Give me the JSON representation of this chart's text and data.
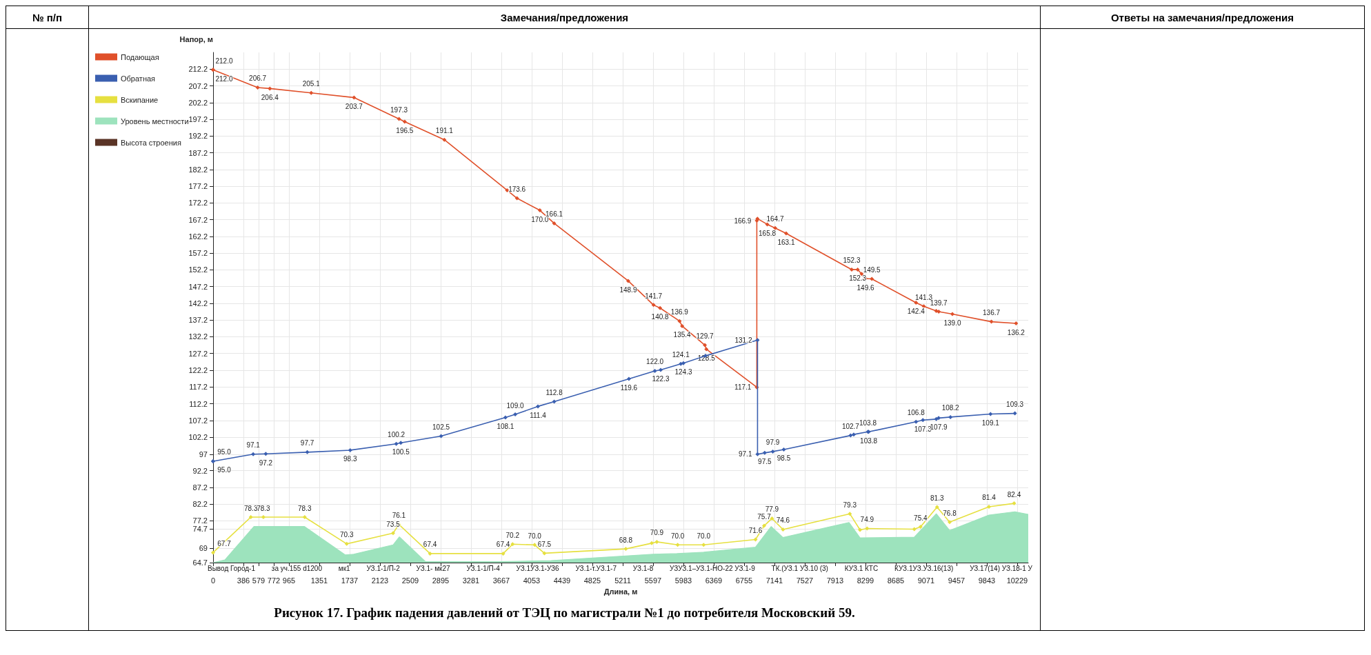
{
  "chart_data": {
    "type": "line",
    "xlabel": "Длина, м",
    "ylabel": "Напор, м",
    "xlim": [
      0,
      10370
    ],
    "xticks": [
      0,
      386,
      579,
      772,
      965,
      1351,
      1737,
      2123,
      2509,
      2895,
      3281,
      3667,
      4053,
      4439,
      4825,
      5211,
      5597,
      5983,
      6369,
      6755,
      7141,
      7527,
      7913,
      8299,
      8685,
      9071,
      9457,
      9843,
      10229
    ],
    "ylim": [
      64.7,
      217.2
    ],
    "yticks": [
      64.7,
      69,
      74.7,
      77.2,
      82.2,
      87.2,
      92.2,
      97,
      102.2,
      107.2,
      112.2,
      117.2,
      122.2,
      127.2,
      132.2,
      137.2,
      142.2,
      147.2,
      152.2,
      157.2,
      162.2,
      167.2,
      172.2,
      177.2,
      182.2,
      187.2,
      192.2,
      197.2,
      202.2,
      207.2,
      212.2
    ],
    "grid": true,
    "legend": "left",
    "marker": "diamond",
    "series": [
      {
        "name": "Подающая",
        "color": "#e0502a",
        "x": [
          0,
          0,
          567,
          722,
          1248,
          1793,
          2365,
          2438,
          2942,
          3740,
          3866,
          4157,
          4339,
          5281,
          5603,
          5686,
          5934,
          5967,
          6256,
          6275,
          6917,
          6917,
          6925,
          7050,
          7150,
          7290,
          8124,
          8200,
          8250,
          8300,
          8380,
          8942,
          9041,
          9200,
          9231,
          9405,
          9901,
          10215
        ],
        "values": [
          212.0,
          212.0,
          206.7,
          206.4,
          205.1,
          203.7,
          197.3,
          196.5,
          191.1,
          176.0,
          173.6,
          170.0,
          166.1,
          148.9,
          141.7,
          140.8,
          136.9,
          135.4,
          129.7,
          128.5,
          117.1,
          166.9,
          167.5,
          165.8,
          164.7,
          163.1,
          152.3,
          152.3,
          151.0,
          149.6,
          149.5,
          142.4,
          141.3,
          139.9,
          139.7,
          139.0,
          136.7,
          136.2
        ],
        "value_labels": [
          "212.0",
          "212.0",
          "206.7",
          "206.4",
          "205.1",
          "203.7",
          "197.3",
          "196.5",
          "191.1",
          null,
          "173.6",
          "170.0",
          "166.1",
          "148.9",
          "141.7",
          "140.8",
          "136.9",
          "135.4",
          "129.7",
          "128.5",
          "117.1",
          "166.9",
          null,
          "165.8",
          "164.7",
          "163.1",
          "152.3",
          "152.3",
          null,
          "149.6",
          "149.5",
          "142.4",
          "141.3",
          null,
          "139.7",
          "139.0",
          "136.7",
          "136.2"
        ]
      },
      {
        "name": "Обратная",
        "color": "#3a5fb0",
        "x": [
          0,
          0,
          510,
          670,
          1198,
          1744,
          2330,
          2388,
          2900,
          3719,
          3843,
          4132,
          4339,
          5290,
          5620,
          5694,
          5950,
          5983,
          6264,
          6926,
          6926,
          7017,
          7120,
          7260,
          8110,
          8150,
          8330,
          8340,
          8942,
          9030,
          9200,
          9230,
          9380,
          9890,
          10200
        ],
        "values": [
          95.0,
          95.0,
          97.1,
          97.2,
          97.7,
          98.3,
          100.2,
          100.5,
          102.5,
          108.1,
          109.0,
          111.4,
          112.8,
          119.6,
          122.0,
          122.3,
          124.1,
          124.3,
          126.5,
          131.2,
          97.1,
          97.5,
          97.9,
          98.5,
          102.7,
          103.0,
          103.8,
          103.8,
          106.8,
          107.3,
          107.6,
          107.9,
          108.2,
          109.1,
          109.3
        ],
        "value_labels": [
          "95.0",
          "95.0",
          "97.1",
          "97.2",
          "97.7",
          "98.3",
          "100.2",
          "100.5",
          "102.5",
          "108.1",
          "109.0",
          "111.4",
          "112.8",
          "119.6",
          "122.0",
          "122.3",
          "124.1",
          "124.3",
          null,
          "131.2",
          "97.1",
          "97.5",
          "97.9",
          "98.5",
          "102.7",
          null,
          "103.8",
          "103.8",
          "106.8",
          "107.3",
          null,
          "107.9",
          "108.2",
          "109.1",
          "109.3"
        ]
      },
      {
        "name": "Вскипание",
        "color": "#e6e040",
        "x": [
          0,
          480,
          640,
          1165,
          1700,
          2290,
          2364,
          2760,
          3690,
          3810,
          4090,
          4215,
          5250,
          5580,
          5645,
          5910,
          6240,
          6900,
          7010,
          7110,
          7250,
          8100,
          8230,
          8320,
          8920,
          9000,
          9210,
          9370,
          9870,
          10190
        ],
        "values": [
          67.7,
          78.3,
          78.3,
          78.3,
          70.3,
          73.5,
          76.1,
          67.4,
          67.4,
          70.2,
          70.0,
          67.5,
          68.8,
          70.5,
          70.9,
          70.0,
          70.0,
          71.6,
          75.7,
          77.9,
          74.6,
          79.3,
          74.5,
          74.9,
          74.7,
          75.4,
          81.3,
          76.8,
          81.4,
          82.4
        ],
        "value_labels": [
          "67.7",
          "78.3",
          "78.3",
          "78.3",
          "70.3",
          "73.5",
          "76.1",
          "67.4",
          "67.4",
          "70.2",
          "70.0",
          "67.5",
          "68.8",
          null,
          "70.9",
          "70.0",
          "70.0",
          "71.6",
          "75.7",
          "77.9",
          "74.6",
          "79.3",
          null,
          "74.9",
          null,
          "75.4",
          "81.3",
          "76.8",
          "81.4",
          "82.4"
        ]
      },
      {
        "name": "Уровень местности",
        "type": "area",
        "marker": "none",
        "color": "#9de3bd",
        "x": [
          0,
          150,
          520,
          1160,
          1680,
          1790,
          2290,
          2370,
          2700,
          3660,
          4300,
          5250,
          5600,
          5900,
          6240,
          6900,
          7100,
          7250,
          8090,
          8230,
          8920,
          9200,
          9370,
          9870,
          10200,
          10370
        ],
        "values": [
          64.7,
          65.5,
          75.5,
          75.5,
          67.0,
          67.2,
          70.0,
          72.4,
          65.0,
          65.0,
          65.3,
          66.7,
          67.2,
          67.4,
          67.8,
          69.3,
          75.5,
          72.2,
          76.7,
          72.1,
          72.3,
          79.3,
          74.3,
          78.9,
          79.9,
          79.1
        ]
      },
      {
        "name": "Высота строения",
        "color": "#5a3426"
      }
    ],
    "annotations": [
      "№ п/п",
      "Замечания/предложения",
      "Ответы на замечания/предложения",
      "Рисунок 17. График падения давлений от ТЭЦ по магистрали №1 до потребителя Московский 59.",
      "Вывод Город-1",
      "за уч.155 d1200",
      "мк1",
      "УЗ.1-1/П-2",
      "УЗ.1- мк27",
      "УЗ.1-1/П-4",
      "УЗ.1УЗ.1-УЗ6",
      "УЗ.1-т.УЗ.1-7",
      "УЗ.1-8",
      "УЗУЗ.1–УЗ.1-НО-22 УЗ.1-9",
      "ТК.(УЗ.1 УЗ.10 (3)",
      "КУЗ.1 КТС",
      "КУЗ.1УЗ.УЗ.16(13)",
      "УЗ.17(14) УЗ.18-1 У"
    ]
  }
}
